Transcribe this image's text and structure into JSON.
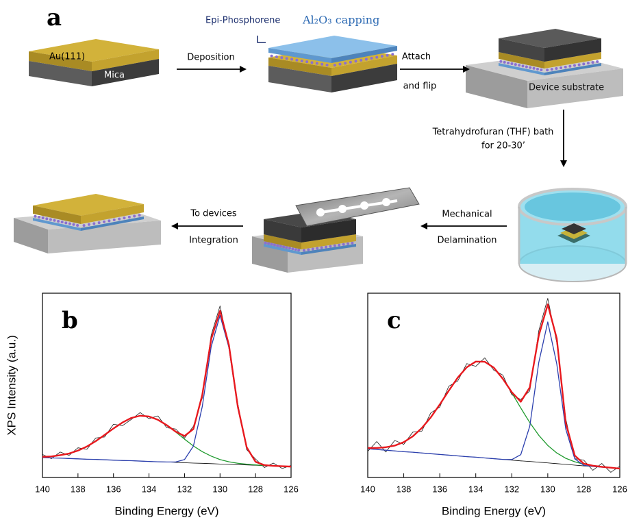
{
  "diagram": {
    "panel_label": "a",
    "layers": [
      "Au(111)",
      "Mica"
    ],
    "epi_label": "Epi-Phosphorene",
    "capping_label": "Al₂O₃ capping",
    "device_label": "Device substrate",
    "steps": [
      [
        "Deposition"
      ],
      [
        "Attach",
        "and flip"
      ],
      [
        "Tetrahydrofuran (THF) bath",
        "for 20-30’"
      ],
      [
        "Mechanical",
        "Delamination"
      ],
      [
        "To devices",
        "Integration"
      ]
    ]
  },
  "chart_data": [
    {
      "type": "line",
      "panel_label": "b",
      "x_label": "Binding Energy (eV)",
      "y_label": "XPS Intensity (a.u.)",
      "x": [
        140,
        139.5,
        139,
        138.5,
        138,
        137.5,
        137,
        136.5,
        136,
        135.5,
        135,
        134.5,
        134,
        133.5,
        133,
        132.5,
        132,
        131.5,
        131,
        130.5,
        130,
        129.5,
        129,
        128.5,
        128,
        127.5,
        127,
        126.5,
        126
      ],
      "xlim": [
        140,
        126
      ],
      "xticks": [
        140,
        138,
        136,
        134,
        132,
        130,
        128,
        126
      ],
      "ylim": [
        0,
        100
      ],
      "series": [
        {
          "color": "#1a1a1a",
          "values": [
            12.5,
            10.2,
            13.8,
            12.0,
            16.1,
            15.3,
            21.4,
            22.0,
            28.9,
            28.1,
            31.5,
            35.2,
            31.9,
            33.4,
            27.0,
            26.3,
            21.4,
            27.8,
            43.1,
            77.2,
            93.1,
            70.4,
            40.2,
            15.1,
            10.0,
            5.4,
            7.8,
            4.9,
            6.5
          ]
        },
        {
          "color": "#000000",
          "values": [
            10.8,
            10.6,
            10.5,
            10.3,
            10.1,
            9.9,
            9.8,
            9.6,
            9.4,
            9.2,
            9.1,
            8.9,
            8.7,
            8.5,
            8.4,
            8.2,
            8.0,
            7.8,
            7.7,
            7.5,
            7.3,
            7.1,
            7.0,
            6.8,
            6.6,
            6.4,
            6.3,
            6.1,
            5.9
          ]
        },
        {
          "color": "#1f9a2e",
          "values": [
            11.2,
            11.4,
            12.1,
            13.0,
            14.6,
            16.8,
            19.7,
            23.1,
            26.6,
            29.8,
            32.3,
            33.5,
            33.1,
            31.3,
            28.4,
            24.7,
            20.8,
            17.1,
            14.0,
            11.6,
            9.7,
            8.5,
            7.7,
            7.2,
            6.8,
            6.5,
            6.3,
            6.1,
            5.9
          ]
        },
        {
          "color": "#2b3fae",
          "values": [
            10.8,
            10.6,
            10.5,
            10.3,
            10.1,
            9.9,
            9.8,
            9.6,
            9.4,
            9.2,
            9.1,
            8.9,
            8.7,
            8.5,
            8.4,
            8.4,
            9.7,
            17.0,
            38.5,
            70.9,
            88.0,
            70.5,
            37.8,
            16.0,
            8.3,
            6.6,
            6.3,
            6.1,
            5.9
          ]
        },
        {
          "color": "#e8191e",
          "values": [
            11.2,
            11.4,
            12.1,
            13.0,
            14.6,
            16.8,
            19.7,
            23.1,
            26.6,
            29.8,
            32.3,
            33.5,
            33.1,
            31.3,
            28.4,
            24.9,
            22.5,
            26.3,
            44.8,
            75.0,
            90.4,
            71.9,
            38.5,
            16.4,
            8.5,
            6.7,
            6.3,
            6.1,
            5.9
          ]
        }
      ]
    },
    {
      "type": "line",
      "panel_label": "c",
      "x_label": "Binding Energy (eV)",
      "x": [
        140,
        139.5,
        139,
        138.5,
        138,
        137.5,
        137,
        136.5,
        136,
        135.5,
        135,
        134.5,
        134,
        133.5,
        133,
        132.5,
        132,
        131.5,
        131,
        130.5,
        130,
        129.5,
        129,
        128.5,
        128,
        127.5,
        127,
        126.5,
        126
      ],
      "xlim": [
        140,
        126
      ],
      "xticks": [
        140,
        138,
        136,
        134,
        132,
        130,
        128,
        126
      ],
      "ylim": [
        0,
        100
      ],
      "series": [
        {
          "color": "#1a1a1a",
          "values": [
            14.2,
            19.5,
            13.8,
            20.1,
            18.0,
            24.6,
            25.1,
            35.0,
            38.2,
            49.5,
            52.4,
            61.8,
            60.3,
            64.9,
            58.2,
            55.6,
            44.9,
            42.3,
            47.0,
            79.6,
            97.2,
            73.1,
            31.8,
            10.2,
            9.4,
            3.9,
            7.6,
            2.8,
            6.1
          ]
        },
        {
          "color": "#000000",
          "values": [
            15.6,
            15.2,
            14.8,
            14.4,
            14.0,
            13.7,
            13.3,
            12.9,
            12.5,
            12.1,
            11.7,
            11.3,
            11.0,
            10.6,
            10.2,
            9.8,
            9.4,
            9.0,
            8.7,
            8.3,
            7.9,
            7.5,
            7.1,
            6.7,
            6.3,
            6.0,
            5.6,
            5.2,
            4.8
          ]
        },
        {
          "color": "#1f9a2e",
          "values": [
            16.0,
            16.0,
            16.4,
            17.3,
            19.2,
            22.3,
            26.8,
            32.6,
            39.6,
            47.1,
            54.2,
            59.8,
            62.9,
            62.8,
            59.6,
            53.6,
            46.0,
            37.7,
            29.8,
            22.9,
            17.4,
            13.3,
            10.4,
            8.5,
            7.2,
            6.4,
            5.8,
            5.3,
            4.8
          ]
        },
        {
          "color": "#2b3fae",
          "values": [
            15.6,
            15.2,
            14.8,
            14.4,
            14.0,
            13.7,
            13.3,
            12.9,
            12.5,
            12.1,
            11.7,
            11.3,
            11.0,
            10.6,
            10.2,
            9.8,
            9.7,
            12.4,
            27.8,
            62.4,
            84.4,
            61.6,
            26.2,
            10.1,
            6.6,
            6.0,
            5.6,
            5.2,
            4.8
          ]
        },
        {
          "color": "#e8191e",
          "values": [
            16.0,
            16.0,
            16.4,
            17.3,
            19.2,
            22.3,
            26.8,
            32.6,
            39.6,
            47.1,
            54.2,
            59.8,
            62.9,
            62.8,
            59.6,
            53.6,
            46.3,
            41.1,
            48.9,
            77.0,
            93.9,
            75.4,
            29.5,
            11.9,
            7.5,
            6.4,
            5.8,
            5.3,
            4.8
          ]
        }
      ]
    }
  ]
}
